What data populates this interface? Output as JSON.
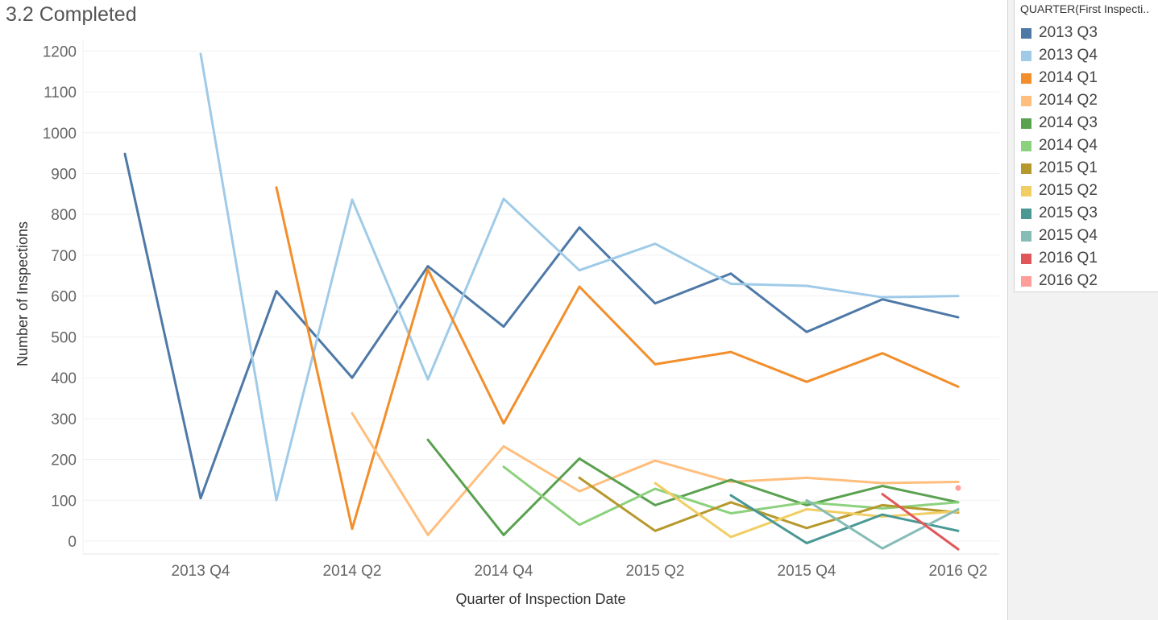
{
  "chart_data": {
    "type": "line",
    "title": "3.2 Completed",
    "xlabel": "Quarter of Inspection Date",
    "ylabel": "Number of Inspections",
    "x_categories": [
      "2013 Q3",
      "2013 Q4",
      "2014 Q1",
      "2014 Q2",
      "2014 Q3",
      "2014 Q4",
      "2015 Q1",
      "2015 Q2",
      "2015 Q3",
      "2015 Q4",
      "2016 Q1",
      "2016 Q2"
    ],
    "x_tick_labels": [
      "2013 Q4",
      "2014 Q2",
      "2014 Q4",
      "2015 Q2",
      "2015 Q4",
      "2016 Q2"
    ],
    "y_ticks": [
      0,
      100,
      200,
      300,
      400,
      500,
      600,
      700,
      800,
      900,
      1000,
      1100,
      1200
    ],
    "ylim": [
      -30,
      1225
    ],
    "grid": true,
    "legend_title": "QUARTER(First Inspecti..",
    "legend_position": "right",
    "series": [
      {
        "name": "2013 Q3",
        "color": "#4e79a7",
        "values": [
          948,
          105,
          612,
          400,
          673,
          525,
          768,
          582,
          655,
          512,
          592,
          548
        ]
      },
      {
        "name": "2013 Q4",
        "color": "#a0cbe8",
        "values": [
          null,
          1193,
          100,
          836,
          396,
          838,
          663,
          728,
          630,
          625,
          597,
          600
        ]
      },
      {
        "name": "2014 Q1",
        "color": "#f28e2b",
        "values": [
          null,
          null,
          866,
          30,
          665,
          288,
          623,
          433,
          463,
          390,
          460,
          378
        ]
      },
      {
        "name": "2014 Q2",
        "color": "#ffbe7d",
        "values": [
          null,
          null,
          null,
          313,
          15,
          232,
          122,
          197,
          145,
          155,
          142,
          145
        ]
      },
      {
        "name": "2014 Q3",
        "color": "#59a14f",
        "values": [
          null,
          null,
          null,
          null,
          248,
          15,
          202,
          88,
          150,
          88,
          135,
          95
        ]
      },
      {
        "name": "2014 Q4",
        "color": "#8cd17d",
        "values": [
          null,
          null,
          null,
          null,
          null,
          182,
          40,
          128,
          68,
          95,
          80,
          95
        ]
      },
      {
        "name": "2015 Q1",
        "color": "#b6992d",
        "values": [
          null,
          null,
          null,
          null,
          null,
          null,
          155,
          25,
          95,
          32,
          88,
          70
        ]
      },
      {
        "name": "2015 Q2",
        "color": "#f1ce63",
        "values": [
          null,
          null,
          null,
          null,
          null,
          null,
          null,
          142,
          10,
          78,
          60,
          73
        ]
      },
      {
        "name": "2015 Q3",
        "color": "#499894",
        "values": [
          null,
          null,
          null,
          null,
          null,
          null,
          null,
          null,
          112,
          -5,
          65,
          25
        ]
      },
      {
        "name": "2015 Q4",
        "color": "#86bcb6",
        "values": [
          null,
          null,
          null,
          null,
          null,
          null,
          null,
          null,
          null,
          100,
          -18,
          78
        ]
      },
      {
        "name": "2016 Q1",
        "color": "#e15759",
        "values": [
          null,
          null,
          null,
          null,
          null,
          null,
          null,
          null,
          null,
          null,
          115,
          -20
        ]
      },
      {
        "name": "2016 Q2",
        "color": "#ff9d9a",
        "values": [
          null,
          null,
          null,
          null,
          null,
          null,
          null,
          null,
          null,
          null,
          null,
          130
        ]
      }
    ]
  }
}
